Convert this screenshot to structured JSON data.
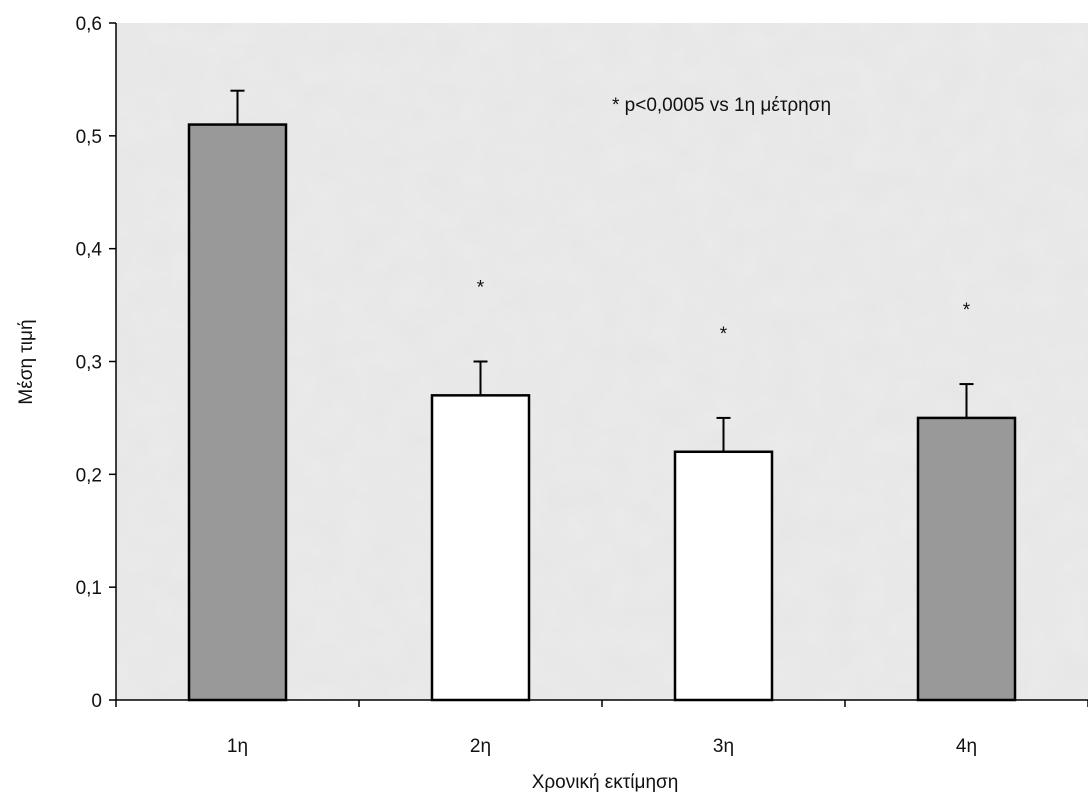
{
  "chart_data": {
    "type": "bar",
    "title": "",
    "xlabel": "Χρονική εκτίμηση",
    "ylabel": "Μέση τιμή",
    "categories": [
      "1η",
      "2η",
      "3η",
      "4η"
    ],
    "values": [
      0.51,
      0.27,
      0.22,
      0.25
    ],
    "error_upper": [
      0.03,
      0.03,
      0.03,
      0.03
    ],
    "significance_markers": [
      "",
      "*",
      "*",
      "*"
    ],
    "annotation": "* p<0,0005 vs 1η μέτρηση",
    "ylim": [
      0,
      0.6
    ],
    "yticks": [
      0,
      0.1,
      0.2,
      0.3,
      0.4,
      0.5,
      0.6
    ],
    "ytick_labels": [
      "0",
      "0,1",
      "0,2",
      "0,3",
      "0,4",
      "0,5",
      "0,6"
    ],
    "grid": false,
    "legend": "none",
    "bar_colors": [
      "#999999",
      "#ffffff",
      "#ffffff",
      "#999999"
    ],
    "plot_background": "#e6e6e6"
  }
}
